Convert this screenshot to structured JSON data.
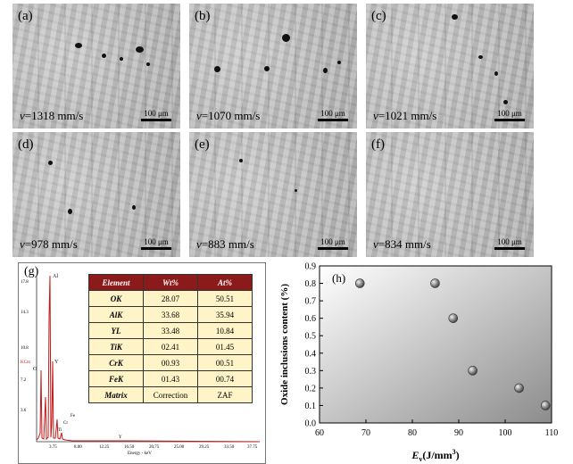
{
  "panels": [
    {
      "label": "(a)",
      "v_value": "=1318 mm/s",
      "scale": "100 μm"
    },
    {
      "label": "(b)",
      "v_value": "=1070 mm/s",
      "scale": "100 μm"
    },
    {
      "label": "(c)",
      "v_value": "=1021 mm/s",
      "scale": "100 μm"
    },
    {
      "label": "(d)",
      "v_value": "=978 mm/s",
      "scale": "100 μm"
    },
    {
      "label": "(e)",
      "v_value": "=883 mm/s",
      "scale": "100 μm"
    },
    {
      "label": "(f)",
      "v_value": "=834 mm/s",
      "scale": "100 μm"
    }
  ],
  "v_symbol": "v",
  "eds": {
    "label": "(g)",
    "table_headers": [
      "Element",
      "Wt%",
      "At%"
    ],
    "table_rows": [
      [
        "OK",
        "28.07",
        "50.51"
      ],
      [
        "AlK",
        "33.68",
        "35.94"
      ],
      [
        "YL",
        "33.48",
        "10.84"
      ],
      [
        "TiK",
        "02.41",
        "01.45"
      ],
      [
        "CrK",
        "00.93",
        "00.51"
      ],
      [
        "FeK",
        "01.43",
        "00.74"
      ],
      [
        "Matrix",
        "Correction",
        "ZAF"
      ]
    ],
    "peak_labels": [
      "Al",
      "O",
      "Y",
      "Ti",
      "Cr",
      "Fe",
      "Y"
    ],
    "y_ticks": [
      "17.8",
      "14.3",
      "10.8",
      "7.2",
      "3.6"
    ],
    "y_unit": "KCnt",
    "x_ticks": [
      "3.75",
      "8.00",
      "12.25",
      "16.50",
      "20.75",
      "25.00",
      "29.25",
      "33.50",
      "37.75"
    ],
    "x_label": "Energy - keV"
  },
  "chart_data": {
    "type": "scatter",
    "label": "(h)",
    "xlabel_italic": "E",
    "xlabel_sub": "v",
    "xlabel_rest": "(J/mm",
    "xlabel_sup": "3",
    "xlabel_close": ")",
    "ylabel": "Oxide inclusions content (%)",
    "xlim": [
      60,
      110
    ],
    "ylim": [
      0.0,
      0.9
    ],
    "x_ticks": [
      60,
      70,
      80,
      90,
      100,
      110
    ],
    "y_ticks": [
      "0.0",
      "0.1",
      "0.2",
      "0.3",
      "0.4",
      "0.5",
      "0.6",
      "0.7",
      "0.8",
      "0.9"
    ],
    "x": [
      68.7,
      84.9,
      88.8,
      93.0,
      103.0,
      108.7
    ],
    "y": [
      0.8,
      0.8,
      0.6,
      0.3,
      0.2,
      0.1
    ],
    "marker_color": "#888888"
  }
}
